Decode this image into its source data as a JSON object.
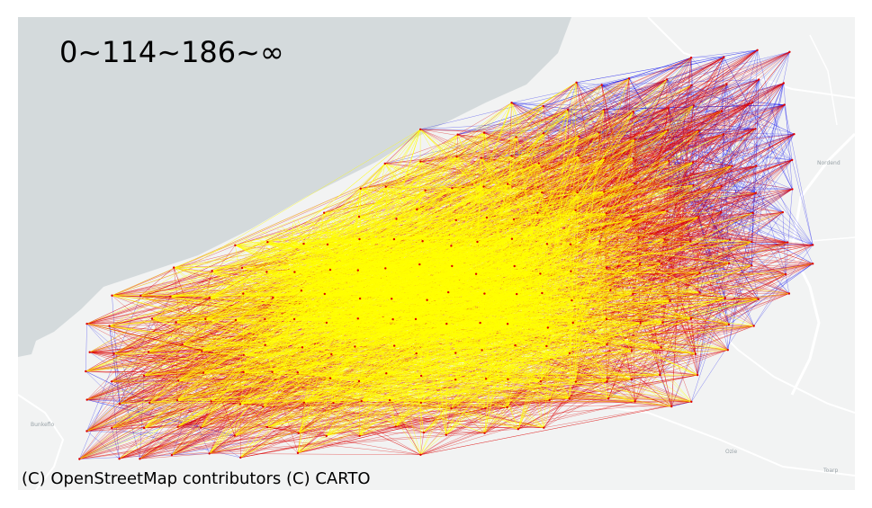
{
  "map": {
    "title": "0~114~186~∞",
    "attribution": "(C) OpenStreetMap contributors (C) CARTO",
    "basemap_colors": {
      "water": "#d4dadc",
      "land": "#f2f3f3",
      "roads": "#ffffff"
    },
    "edge_colors": {
      "low": "#ffff00",
      "mid": "#dd0000",
      "high": "#0000ee"
    },
    "place_labels": [
      "Nordend",
      "Ozie",
      "Toarp",
      "Bunkeflo"
    ]
  }
}
